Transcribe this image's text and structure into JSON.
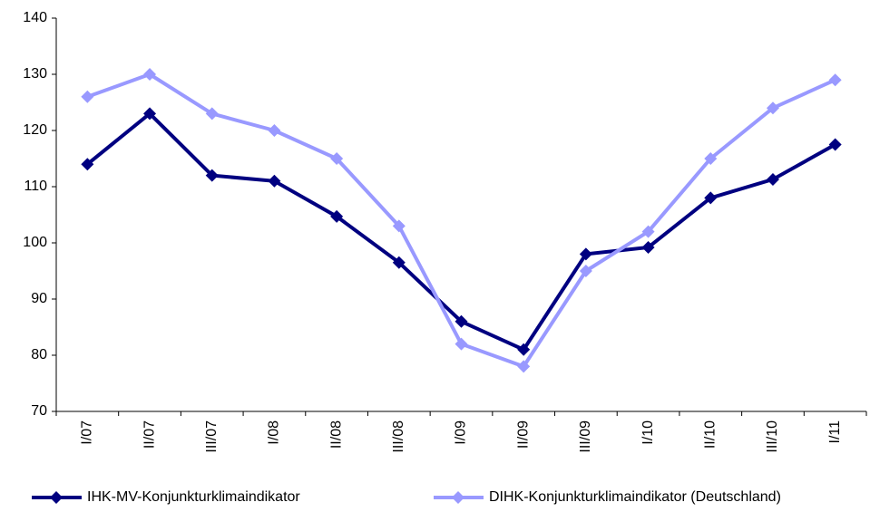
{
  "chart_data": {
    "type": "line",
    "categories": [
      "I/07",
      "II/07",
      "III/07",
      "I/08",
      "II/08",
      "III/08",
      "I/09",
      "II/09",
      "III/09",
      "I/10",
      "II/10",
      "III/10",
      "I/11"
    ],
    "series": [
      {
        "name": "IHK-MV-Konjunkturklimaindikator",
        "color": "#000080",
        "values": [
          114,
          123,
          112,
          111,
          104.7,
          96.5,
          86,
          81,
          98,
          99.2,
          108,
          111.3,
          117.5
        ]
      },
      {
        "name": "DIHK-Konjunkturklimaindikator (Deutschland)",
        "color": "#9999ff",
        "values": [
          126,
          130,
          123,
          120,
          115,
          103,
          82,
          78,
          95,
          102,
          115,
          124,
          129
        ]
      }
    ],
    "ylim": [
      70,
      140
    ],
    "yticks": [
      70,
      80,
      90,
      100,
      110,
      120,
      130,
      140
    ],
    "grid": false
  }
}
